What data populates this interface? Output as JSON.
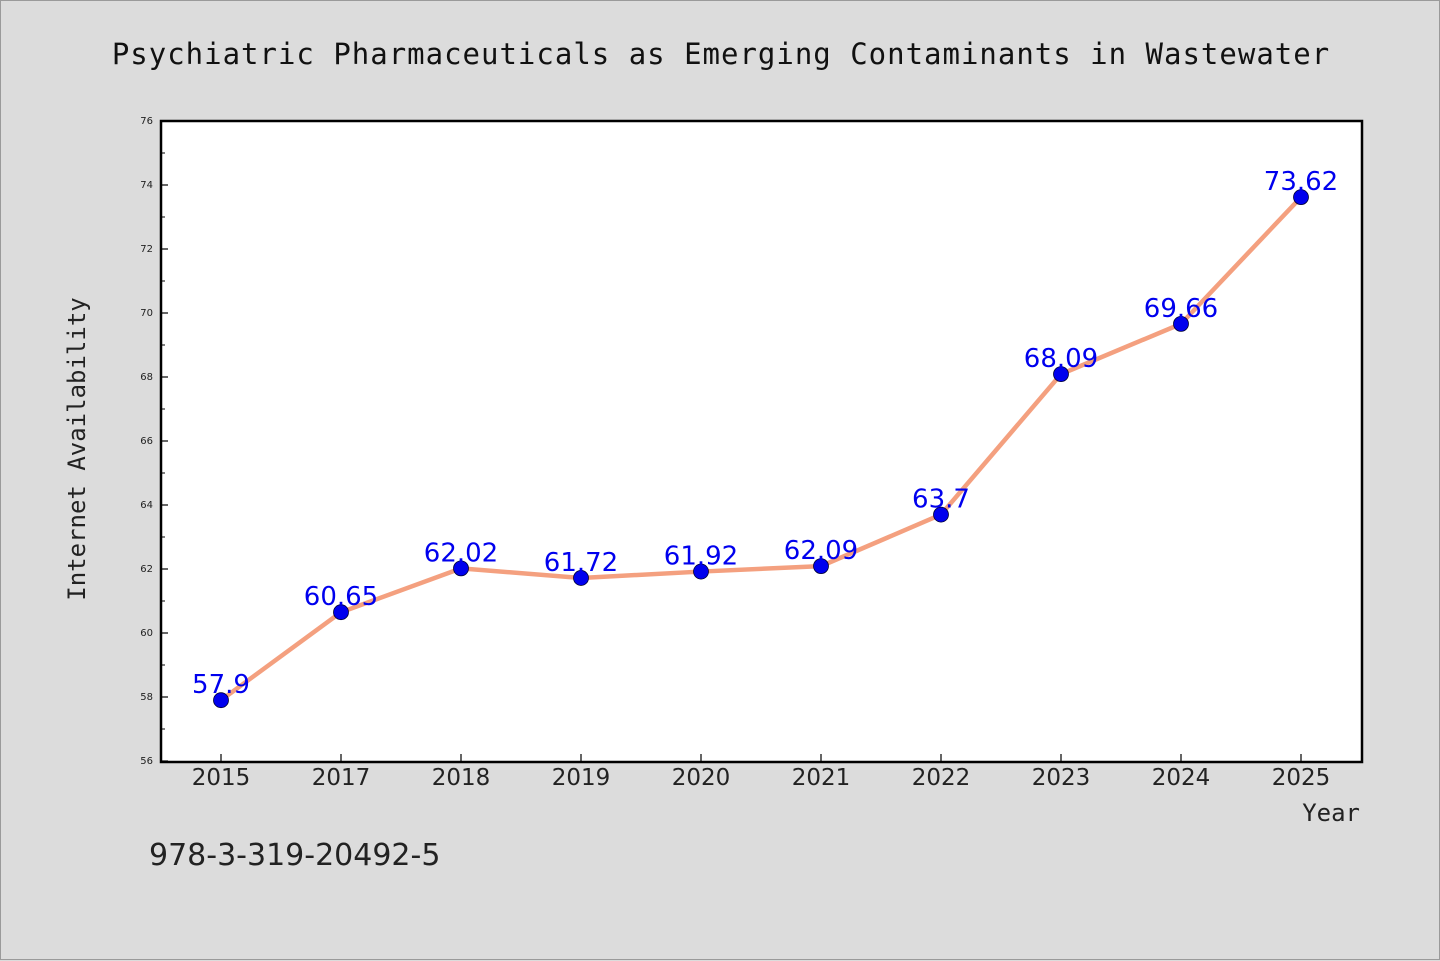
{
  "chart_data": {
    "type": "line",
    "title": "Psychiatric Pharmaceuticals as Emerging Contaminants in Wastewater",
    "xlabel": "Year",
    "ylabel": "Internet Availability",
    "categories": [
      "2015",
      "2017",
      "2018",
      "2019",
      "2020",
      "2021",
      "2022",
      "2023",
      "2024",
      "2025"
    ],
    "series": [
      {
        "values": [
          57.9,
          60.65,
          62.02,
          61.72,
          61.92,
          62.09,
          63.7,
          68.09,
          69.66,
          73.62
        ],
        "labels": [
          "57.9",
          "60.65",
          "62.02",
          "61.72",
          "61.92",
          "62.09",
          "63.7",
          "68.09",
          "69.66",
          "73.62"
        ]
      }
    ],
    "ylim": [
      56,
      76
    ],
    "yticks": [
      "56",
      "58",
      "60",
      "62",
      "64",
      "66",
      "68",
      "70",
      "72",
      "74",
      "76"
    ],
    "grid": false,
    "legend": "none",
    "colors": {
      "line": "#f4a07f",
      "marker": "#0000ee",
      "label": "#0000ee",
      "background": "#dcdcdc",
      "plot_background": "#ffffff"
    }
  },
  "footer": {
    "isbn": "978-3-319-20492-5"
  }
}
